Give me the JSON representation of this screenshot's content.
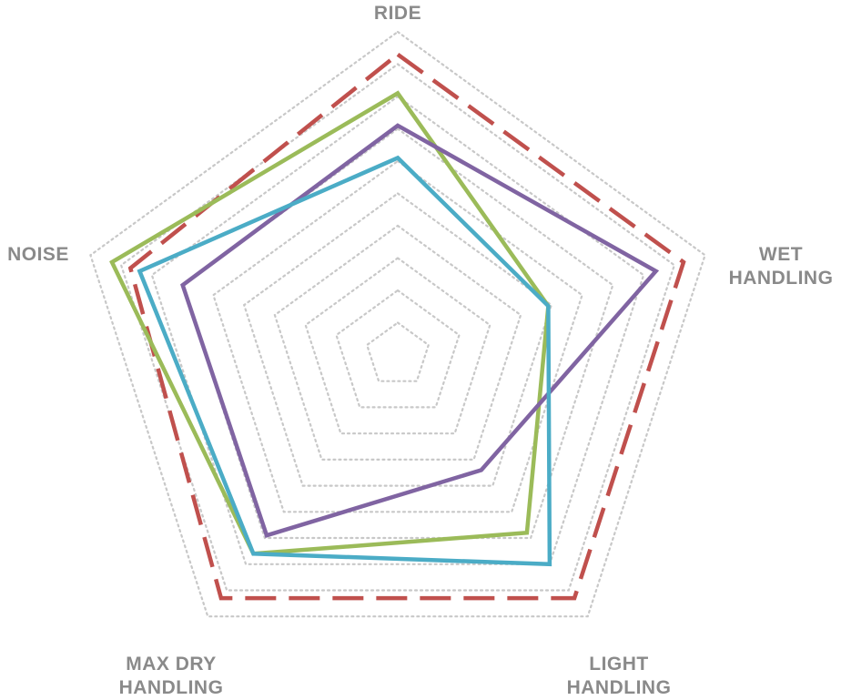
{
  "chart_data": {
    "type": "radar",
    "title": "",
    "axes": [
      "RIDE",
      "WET HANDLING",
      "LIGHT HANDLING",
      "MAX DRY HANDLING",
      "NOISE"
    ],
    "axis_label_lines": [
      [
        "RIDE"
      ],
      [
        "WET",
        "HANDLING"
      ],
      [
        "LIGHT",
        "HANDLING"
      ],
      [
        "MAX DRY",
        "HANDLING"
      ],
      [
        "NOISE"
      ]
    ],
    "range": [
      0,
      10
    ],
    "gridlines": 10,
    "grid": true,
    "legend": "none",
    "series": [
      {
        "color": "#c0504d",
        "dashed": true,
        "values": [
          9.3,
          9.3,
          9.3,
          9.3,
          8.7
        ]
      },
      {
        "color": "#9bbb59",
        "dashed": false,
        "values": [
          8.1,
          4.9,
          6.8,
          7.6,
          9.3
        ]
      },
      {
        "color": "#8064a2",
        "dashed": false,
        "values": [
          7.1,
          8.4,
          4.4,
          6.9,
          7.0
        ]
      },
      {
        "color": "#4bacc6",
        "dashed": false,
        "values": [
          6.1,
          4.9,
          8.0,
          7.6,
          8.4
        ]
      }
    ]
  }
}
